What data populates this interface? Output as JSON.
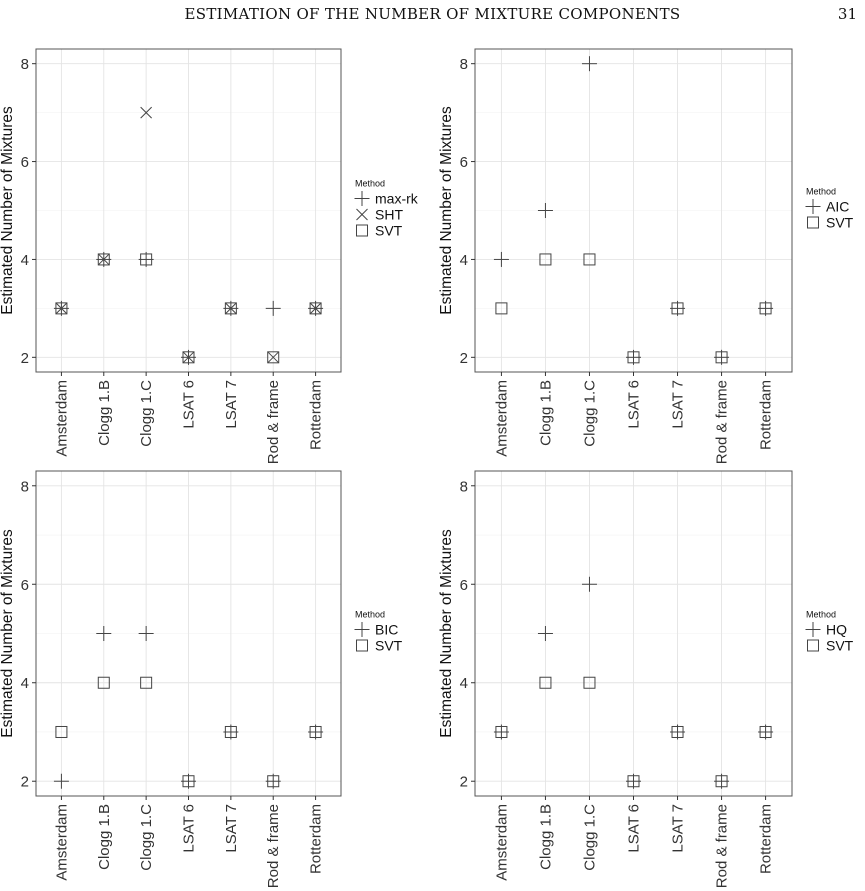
{
  "header": {
    "title": "ESTIMATION OF THE NUMBER OF MIXTURE COMPONENTS",
    "page_number": "31"
  },
  "chart_data": [
    {
      "type": "scatter",
      "ylabel": "Estimated Number of Mixtures",
      "xlabel": "",
      "ylim": [
        1.7,
        8.3
      ],
      "yticks": [
        2,
        4,
        6,
        8
      ],
      "grid": true,
      "legend": "right",
      "legend_title": "Method",
      "categories": [
        "Amsterdam",
        "Clogg 1.B",
        "Clogg 1.C",
        "LSAT 6",
        "LSAT 7",
        "Rod & frame",
        "Rotterdam"
      ],
      "series": [
        {
          "name": "max-rk",
          "shape": "plus",
          "values": [
            3,
            4,
            4,
            2,
            3,
            3,
            3
          ]
        },
        {
          "name": "SHT",
          "shape": "cross",
          "values": [
            3,
            4,
            7,
            2,
            3,
            2,
            3
          ]
        },
        {
          "name": "SVT",
          "shape": "square",
          "values": [
            3,
            4,
            4,
            2,
            3,
            2,
            3
          ]
        }
      ]
    },
    {
      "type": "scatter",
      "ylabel": "Estimated Number of Mixtures",
      "xlabel": "",
      "ylim": [
        1.7,
        8.3
      ],
      "yticks": [
        2,
        4,
        6,
        8
      ],
      "grid": true,
      "legend": "right",
      "legend_title": "Method",
      "categories": [
        "Amsterdam",
        "Clogg 1.B",
        "Clogg 1.C",
        "LSAT 6",
        "LSAT 7",
        "Rod & frame",
        "Rotterdam"
      ],
      "series": [
        {
          "name": "AIC",
          "shape": "plus",
          "values": [
            4,
            5,
            8,
            2,
            3,
            2,
            3
          ]
        },
        {
          "name": "SVT",
          "shape": "square",
          "values": [
            3,
            4,
            4,
            2,
            3,
            2,
            3
          ]
        }
      ]
    },
    {
      "type": "scatter",
      "ylabel": "Estimated Number of Mixtures",
      "xlabel": "",
      "ylim": [
        1.7,
        8.3
      ],
      "yticks": [
        2,
        4,
        6,
        8
      ],
      "grid": true,
      "legend": "right",
      "legend_title": "Method",
      "categories": [
        "Amsterdam",
        "Clogg 1.B",
        "Clogg 1.C",
        "LSAT 6",
        "LSAT 7",
        "Rod & frame",
        "Rotterdam"
      ],
      "series": [
        {
          "name": "BIC",
          "shape": "plus",
          "values": [
            2,
            5,
            5,
            2,
            3,
            2,
            3
          ]
        },
        {
          "name": "SVT",
          "shape": "square",
          "values": [
            3,
            4,
            4,
            2,
            3,
            2,
            3
          ]
        }
      ]
    },
    {
      "type": "scatter",
      "ylabel": "Estimated Number of Mixtures",
      "xlabel": "",
      "ylim": [
        1.7,
        8.3
      ],
      "yticks": [
        2,
        4,
        6,
        8
      ],
      "grid": true,
      "legend": "right",
      "legend_title": "Method",
      "categories": [
        "Amsterdam",
        "Clogg 1.B",
        "Clogg 1.C",
        "LSAT 6",
        "LSAT 7",
        "Rod & frame",
        "Rotterdam"
      ],
      "series": [
        {
          "name": "HQ",
          "shape": "plus",
          "values": [
            3,
            5,
            6,
            2,
            3,
            2,
            3
          ]
        },
        {
          "name": "SVT",
          "shape": "square",
          "values": [
            3,
            4,
            4,
            2,
            3,
            2,
            3
          ]
        }
      ]
    }
  ]
}
